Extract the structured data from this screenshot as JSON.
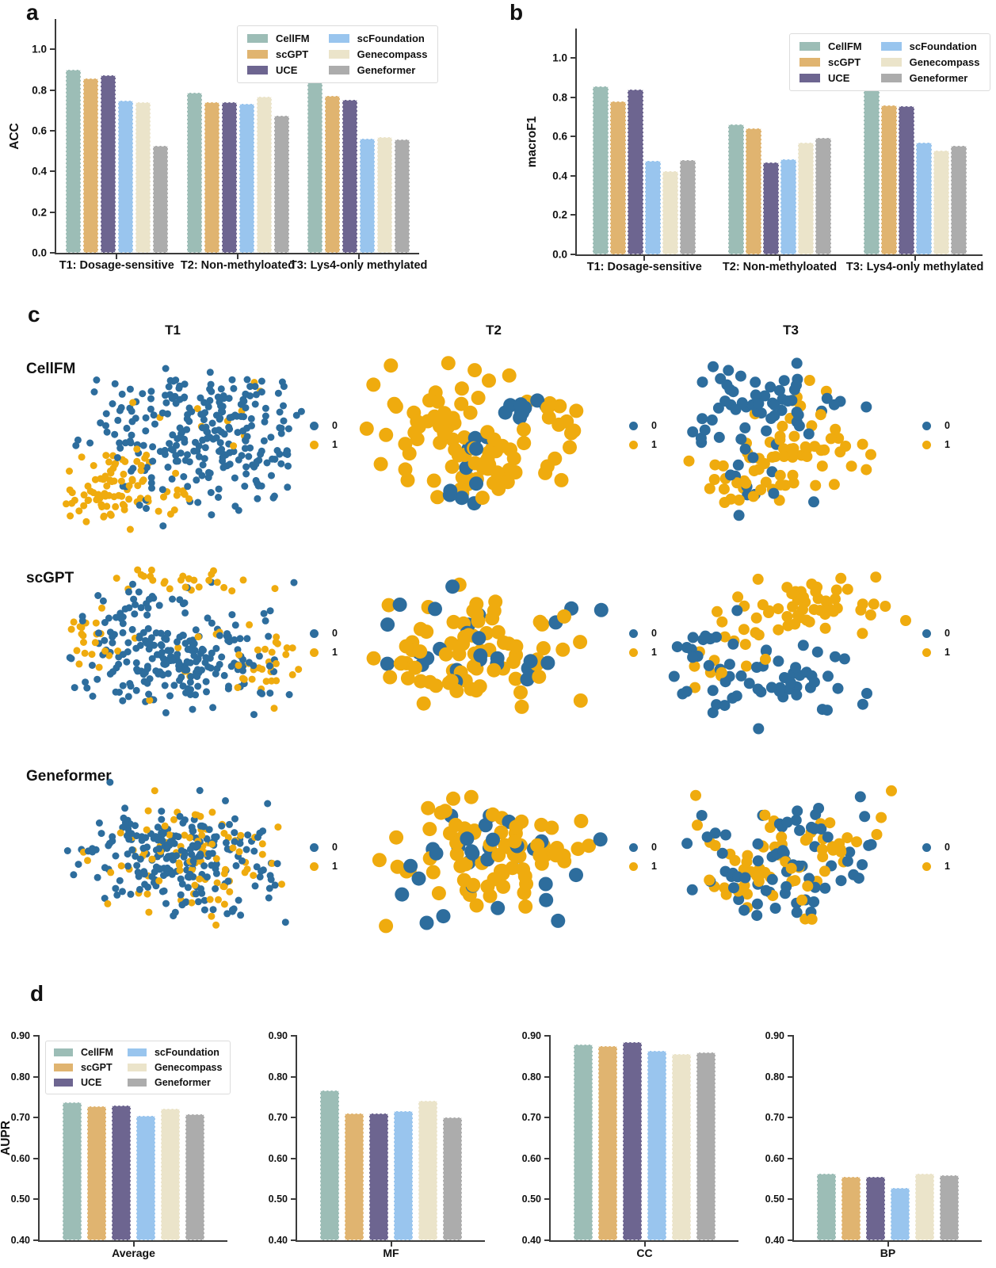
{
  "panels": {
    "a": "a",
    "b": "b",
    "c": "c",
    "d": "d"
  },
  "methods": [
    {
      "name": "CellFM",
      "color": "#9cbdb6"
    },
    {
      "name": "scGPT",
      "color": "#e0b470"
    },
    {
      "name": "UCE",
      "color": "#6d6590"
    },
    {
      "name": "scFoundation",
      "color": "#99c5ee"
    },
    {
      "name": "Genecompass",
      "color": "#ebe4ca"
    },
    {
      "name": "Geneformer",
      "color": "#acacac"
    }
  ],
  "scatter_classes": [
    {
      "label": "0",
      "color": "#2d6d9d"
    },
    {
      "label": "1",
      "color": "#efab0e"
    }
  ],
  "panel_c": {
    "columns": [
      "T1",
      "T2",
      "T3"
    ],
    "rows": [
      "CellFM",
      "scGPT",
      "Geneformer"
    ]
  },
  "chart_data": [
    {
      "id": "acc",
      "type": "bar",
      "panel": "a",
      "title": "",
      "ylabel": "ACC",
      "categories": [
        "T1: Dosage-sensitive",
        "T2: Non-methyloated",
        "T3: Lys4-only methylated"
      ],
      "series": [
        {
          "name": "CellFM",
          "values": [
            0.899,
            0.787,
            0.856
          ]
        },
        {
          "name": "scGPT",
          "values": [
            0.856,
            0.741,
            0.771
          ]
        },
        {
          "name": "UCE",
          "values": [
            0.873,
            0.741,
            0.754
          ]
        },
        {
          "name": "scFoundation",
          "values": [
            0.749,
            0.732,
            0.562
          ]
        },
        {
          "name": "Genecompass",
          "values": [
            0.739,
            0.768,
            0.569
          ]
        },
        {
          "name": "Geneformer",
          "values": [
            0.526,
            0.673,
            0.558
          ]
        }
      ],
      "ylim": [
        0,
        1.15
      ],
      "yticks": [
        0,
        0.2,
        0.4,
        0.6,
        0.8,
        1.0
      ],
      "ytick_labels": [
        "0.0",
        "0.2",
        "0.4",
        "0.6",
        "0.8",
        "1.0"
      ],
      "grid": false,
      "legend": true,
      "legend_position": "upper right"
    },
    {
      "id": "macrof1",
      "type": "bar",
      "panel": "b",
      "title": "",
      "ylabel": "macroF1",
      "categories": [
        "T1: Dosage-sensitive",
        "T2: Non-methyloated",
        "T3: Lys4-only methylated"
      ],
      "series": [
        {
          "name": "CellFM",
          "values": [
            0.854,
            0.66,
            0.86
          ]
        },
        {
          "name": "scGPT",
          "values": [
            0.778,
            0.642,
            0.758
          ]
        },
        {
          "name": "UCE",
          "values": [
            0.841,
            0.469,
            0.755
          ]
        },
        {
          "name": "scFoundation",
          "values": [
            0.476,
            0.486,
            0.567
          ]
        },
        {
          "name": "Genecompass",
          "values": [
            0.422,
            0.567,
            0.527
          ]
        },
        {
          "name": "Geneformer",
          "values": [
            0.479,
            0.594,
            0.554
          ]
        }
      ],
      "ylim": [
        0,
        1.15
      ],
      "yticks": [
        0,
        0.2,
        0.4,
        0.6,
        0.8,
        1.0
      ],
      "ytick_labels": [
        "0.0",
        "0.2",
        "0.4",
        "0.6",
        "0.8",
        "1.0"
      ],
      "grid": false,
      "legend": true,
      "legend_position": "upper right"
    },
    {
      "id": "aupr-average",
      "type": "bar",
      "panel": "d",
      "title": "",
      "ylabel": "AUPR",
      "categories": [
        "Average"
      ],
      "series": [
        {
          "name": "CellFM",
          "values": [
            0.737
          ]
        },
        {
          "name": "scGPT",
          "values": [
            0.727
          ]
        },
        {
          "name": "UCE",
          "values": [
            0.729
          ]
        },
        {
          "name": "scFoundation",
          "values": [
            0.705
          ]
        },
        {
          "name": "Genecompass",
          "values": [
            0.722
          ]
        },
        {
          "name": "Geneformer",
          "values": [
            0.708
          ]
        }
      ],
      "ylim": [
        0.4,
        0.9
      ],
      "yticks": [
        0.4,
        0.5,
        0.6,
        0.7,
        0.8,
        0.9
      ],
      "ytick_labels": [
        "0.40",
        "0.50",
        "0.60",
        "0.70",
        "0.80",
        "0.90"
      ],
      "grid": false,
      "legend": true,
      "legend_position": "upper left"
    },
    {
      "id": "aupr-mf",
      "type": "bar",
      "panel": "d",
      "title": "",
      "ylabel": "",
      "categories": [
        "MF"
      ],
      "series": [
        {
          "name": "CellFM",
          "values": [
            0.766
          ]
        },
        {
          "name": "scGPT",
          "values": [
            0.71
          ]
        },
        {
          "name": "UCE",
          "values": [
            0.71
          ]
        },
        {
          "name": "scFoundation",
          "values": [
            0.716
          ]
        },
        {
          "name": "Genecompass",
          "values": [
            0.742
          ]
        },
        {
          "name": "Geneformer",
          "values": [
            0.701
          ]
        }
      ],
      "ylim": [
        0.4,
        0.9
      ],
      "yticks": [
        0.4,
        0.5,
        0.6,
        0.7,
        0.8,
        0.9
      ],
      "ytick_labels": [
        "0.40",
        "0.50",
        "0.60",
        "0.70",
        "0.80",
        "0.90"
      ],
      "grid": false,
      "legend": false
    },
    {
      "id": "aupr-cc",
      "type": "bar",
      "panel": "d",
      "title": "",
      "ylabel": "",
      "categories": [
        "CC"
      ],
      "series": [
        {
          "name": "CellFM",
          "values": [
            0.878
          ]
        },
        {
          "name": "scGPT",
          "values": [
            0.874
          ]
        },
        {
          "name": "UCE",
          "values": [
            0.884
          ]
        },
        {
          "name": "scFoundation",
          "values": [
            0.864
          ]
        },
        {
          "name": "Genecompass",
          "values": [
            0.856
          ]
        },
        {
          "name": "Geneformer",
          "values": [
            0.86
          ]
        }
      ],
      "ylim": [
        0.4,
        0.9
      ],
      "yticks": [
        0.4,
        0.5,
        0.6,
        0.7,
        0.8,
        0.9
      ],
      "ytick_labels": [
        "0.40",
        "0.50",
        "0.60",
        "0.70",
        "0.80",
        "0.90"
      ],
      "grid": false,
      "legend": false
    },
    {
      "id": "aupr-bp",
      "type": "bar",
      "panel": "d",
      "title": "",
      "ylabel": "",
      "categories": [
        "BP"
      ],
      "series": [
        {
          "name": "CellFM",
          "values": [
            0.563
          ]
        },
        {
          "name": "scGPT",
          "values": [
            0.555
          ]
        },
        {
          "name": "UCE",
          "values": [
            0.556
          ]
        },
        {
          "name": "scFoundation",
          "values": [
            0.527
          ]
        },
        {
          "name": "Genecompass",
          "values": [
            0.563
          ]
        },
        {
          "name": "Geneformer",
          "values": [
            0.559
          ]
        }
      ],
      "ylim": [
        0.4,
        0.9
      ],
      "yticks": [
        0.4,
        0.5,
        0.6,
        0.7,
        0.8,
        0.9
      ],
      "ytick_labels": [
        "0.40",
        "0.50",
        "0.60",
        "0.70",
        "0.80",
        "0.90"
      ],
      "grid": false,
      "legend": false
    },
    {
      "id": "c-cellfm-t1",
      "type": "scatter",
      "panel": "c",
      "row": "CellFM",
      "col": "T1",
      "classes": [
        "0",
        "1"
      ],
      "point_radius": 4.5,
      "seed": 11,
      "clusters": [
        {
          "cls": 0,
          "n": 120,
          "cx": 0.62,
          "cy": 0.33,
          "sx": 0.17,
          "sy": 0.11
        },
        {
          "cls": 0,
          "n": 85,
          "cx": 0.66,
          "cy": 0.6,
          "sx": 0.15,
          "sy": 0.11
        },
        {
          "cls": 0,
          "n": 48,
          "cx": 0.28,
          "cy": 0.4,
          "sx": 0.11,
          "sy": 0.12
        },
        {
          "cls": 0,
          "n": 14,
          "cx": 0.45,
          "cy": 0.7,
          "sx": 0.1,
          "sy": 0.08
        },
        {
          "cls": 1,
          "n": 52,
          "cx": 0.18,
          "cy": 0.77,
          "sx": 0.07,
          "sy": 0.08
        },
        {
          "cls": 1,
          "n": 20,
          "cx": 0.28,
          "cy": 0.57,
          "sx": 0.07,
          "sy": 0.06
        },
        {
          "cls": 1,
          "n": 20,
          "cx": 0.47,
          "cy": 0.78,
          "sx": 0.1,
          "sy": 0.06
        },
        {
          "cls": 1,
          "n": 10,
          "cx": 0.6,
          "cy": 0.42,
          "sx": 0.16,
          "sy": 0.12
        }
      ]
    },
    {
      "id": "c-cellfm-t2",
      "type": "scatter",
      "panel": "c",
      "row": "CellFM",
      "col": "T2",
      "classes": [
        "0",
        "1"
      ],
      "point_radius": 9,
      "seed": 22,
      "clusters": [
        {
          "cls": 1,
          "n": 42,
          "cx": 0.33,
          "cy": 0.38,
          "sx": 0.13,
          "sy": 0.12
        },
        {
          "cls": 1,
          "n": 36,
          "cx": 0.5,
          "cy": 0.63,
          "sx": 0.15,
          "sy": 0.1
        },
        {
          "cls": 1,
          "n": 14,
          "cx": 0.74,
          "cy": 0.42,
          "sx": 0.08,
          "sy": 0.1
        },
        {
          "cls": 0,
          "n": 10,
          "cx": 0.66,
          "cy": 0.3,
          "sx": 0.08,
          "sy": 0.06
        },
        {
          "cls": 0,
          "n": 6,
          "cx": 0.45,
          "cy": 0.52,
          "sx": 0.05,
          "sy": 0.04
        },
        {
          "cls": 0,
          "n": 5,
          "cx": 0.4,
          "cy": 0.8,
          "sx": 0.05,
          "sy": 0.04
        }
      ]
    },
    {
      "id": "c-cellfm-t3",
      "type": "scatter",
      "panel": "c",
      "row": "CellFM",
      "col": "T3",
      "classes": [
        "0",
        "1"
      ],
      "point_radius": 7,
      "seed": 33,
      "clusters": [
        {
          "cls": 0,
          "n": 46,
          "cx": 0.45,
          "cy": 0.27,
          "sx": 0.15,
          "sy": 0.08
        },
        {
          "cls": 0,
          "n": 14,
          "cx": 0.27,
          "cy": 0.48,
          "sx": 0.09,
          "sy": 0.09
        },
        {
          "cls": 0,
          "n": 9,
          "cx": 0.35,
          "cy": 0.73,
          "sx": 0.09,
          "sy": 0.07
        },
        {
          "cls": 1,
          "n": 40,
          "cx": 0.6,
          "cy": 0.54,
          "sx": 0.15,
          "sy": 0.09
        },
        {
          "cls": 1,
          "n": 24,
          "cx": 0.28,
          "cy": 0.7,
          "sx": 0.11,
          "sy": 0.08
        },
        {
          "cls": 1,
          "n": 8,
          "cx": 0.52,
          "cy": 0.3,
          "sx": 0.12,
          "sy": 0.05
        }
      ]
    },
    {
      "id": "c-scgpt-t1",
      "type": "scatter",
      "panel": "c",
      "row": "scGPT",
      "col": "T1",
      "classes": [
        "0",
        "1"
      ],
      "point_radius": 4.5,
      "seed": 44,
      "clusters": [
        {
          "cls": 0,
          "n": 215,
          "cx": 0.47,
          "cy": 0.55,
          "sx": 0.18,
          "sy": 0.13
        },
        {
          "cls": 0,
          "n": 30,
          "cx": 0.36,
          "cy": 0.3,
          "sx": 0.11,
          "sy": 0.07
        },
        {
          "cls": 1,
          "n": 26,
          "cx": 0.46,
          "cy": 0.14,
          "sx": 0.15,
          "sy": 0.04
        },
        {
          "cls": 1,
          "n": 20,
          "cx": 0.12,
          "cy": 0.45,
          "sx": 0.04,
          "sy": 0.11
        },
        {
          "cls": 1,
          "n": 26,
          "cx": 0.84,
          "cy": 0.6,
          "sx": 0.06,
          "sy": 0.09
        },
        {
          "cls": 1,
          "n": 14,
          "cx": 0.55,
          "cy": 0.52,
          "sx": 0.17,
          "sy": 0.13
        }
      ]
    },
    {
      "id": "c-scgpt-t2",
      "type": "scatter",
      "panel": "c",
      "row": "scGPT",
      "col": "T2",
      "classes": [
        "0",
        "1"
      ],
      "point_radius": 9,
      "seed": 55,
      "clusters": [
        {
          "cls": 1,
          "n": 74,
          "cx": 0.45,
          "cy": 0.48,
          "sx": 0.19,
          "sy": 0.15
        },
        {
          "cls": 0,
          "n": 26,
          "cx": 0.5,
          "cy": 0.52,
          "sx": 0.21,
          "sy": 0.16
        }
      ]
    },
    {
      "id": "c-scgpt-t3",
      "type": "scatter",
      "panel": "c",
      "row": "scGPT",
      "col": "T3",
      "classes": [
        "0",
        "1"
      ],
      "point_radius": 7,
      "seed": 66,
      "clusters": [
        {
          "cls": 1,
          "n": 52,
          "cx": 0.56,
          "cy": 0.28,
          "sx": 0.17,
          "sy": 0.09
        },
        {
          "cls": 1,
          "n": 10,
          "cx": 0.32,
          "cy": 0.46,
          "sx": 0.09,
          "sy": 0.05
        },
        {
          "cls": 1,
          "n": 6,
          "cx": 0.2,
          "cy": 0.6,
          "sx": 0.05,
          "sy": 0.05
        },
        {
          "cls": 0,
          "n": 52,
          "cx": 0.44,
          "cy": 0.63,
          "sx": 0.17,
          "sy": 0.11
        },
        {
          "cls": 0,
          "n": 12,
          "cx": 0.14,
          "cy": 0.46,
          "sx": 0.05,
          "sy": 0.07
        }
      ]
    },
    {
      "id": "c-geneformer-t1",
      "type": "scatter",
      "panel": "c",
      "row": "Geneformer",
      "col": "T1",
      "classes": [
        "0",
        "1"
      ],
      "point_radius": 4.5,
      "seed": 77,
      "clusters": [
        {
          "cls": 0,
          "n": 235,
          "cx": 0.5,
          "cy": 0.5,
          "sx": 0.2,
          "sy": 0.15
        },
        {
          "cls": 1,
          "n": 88,
          "cx": 0.5,
          "cy": 0.5,
          "sx": 0.2,
          "sy": 0.15
        }
      ]
    },
    {
      "id": "c-geneformer-t2",
      "type": "scatter",
      "panel": "c",
      "row": "Geneformer",
      "col": "T2",
      "classes": [
        "0",
        "1"
      ],
      "point_radius": 9,
      "seed": 88,
      "clusters": [
        {
          "cls": 1,
          "n": 74,
          "cx": 0.5,
          "cy": 0.5,
          "sx": 0.19,
          "sy": 0.16
        },
        {
          "cls": 0,
          "n": 30,
          "cx": 0.5,
          "cy": 0.5,
          "sx": 0.19,
          "sy": 0.16
        }
      ]
    },
    {
      "id": "c-geneformer-t3",
      "type": "scatter",
      "panel": "c",
      "row": "Geneformer",
      "col": "T3",
      "classes": [
        "0",
        "1"
      ],
      "point_radius": 7,
      "seed": 99,
      "clusters": [
        {
          "cls": 0,
          "n": 70,
          "cx": 0.5,
          "cy": 0.5,
          "sx": 0.19,
          "sy": 0.16
        },
        {
          "cls": 1,
          "n": 66,
          "cx": 0.5,
          "cy": 0.5,
          "sx": 0.19,
          "sy": 0.16
        }
      ]
    }
  ]
}
